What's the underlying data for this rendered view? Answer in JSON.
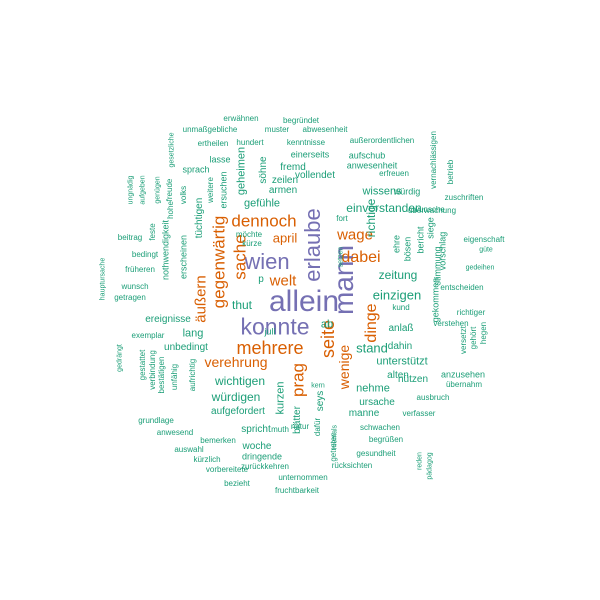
{
  "palette": {
    "purple": "#7570b3",
    "orange": "#d95f02",
    "teal": "#1b9e77"
  },
  "words": [
    {
      "text": "allein",
      "color": "purple"
    },
    {
      "text": "mann",
      "color": "purple"
    },
    {
      "text": "konnte",
      "color": "purple"
    },
    {
      "text": "erlaube",
      "color": "purple"
    },
    {
      "text": "wien",
      "color": "purple"
    },
    {
      "text": "mehrere",
      "color": "orange"
    },
    {
      "text": "seite",
      "color": "orange"
    },
    {
      "text": "sache",
      "color": "orange"
    },
    {
      "text": "dennoch",
      "color": "orange"
    },
    {
      "text": "gegenwärtig",
      "color": "orange"
    },
    {
      "text": "prag",
      "color": "orange"
    },
    {
      "text": "dabei",
      "color": "orange"
    },
    {
      "text": "dinge",
      "color": "orange"
    },
    {
      "text": "wage",
      "color": "orange"
    },
    {
      "text": "welt",
      "color": "orange"
    },
    {
      "text": "verehrung",
      "color": "orange"
    },
    {
      "text": "äußern",
      "color": "orange"
    },
    {
      "text": "april",
      "color": "orange"
    },
    {
      "text": "wenige",
      "color": "orange"
    },
    {
      "text": "stand",
      "color": "teal"
    },
    {
      "text": "einzigen",
      "color": "teal"
    },
    {
      "text": "zeitung",
      "color": "teal"
    },
    {
      "text": "einverstanden",
      "color": "teal"
    },
    {
      "text": "richtige",
      "color": "teal"
    },
    {
      "text": "wissens",
      "color": "teal"
    },
    {
      "text": "wichtigen",
      "color": "teal"
    },
    {
      "text": "würdigen",
      "color": "teal"
    },
    {
      "text": "unterstützt",
      "color": "teal"
    },
    {
      "text": "gefühle",
      "color": "teal"
    },
    {
      "text": "thut",
      "color": "teal"
    },
    {
      "text": "lang",
      "color": "teal"
    },
    {
      "text": "ereignisse",
      "color": "teal"
    },
    {
      "text": "unbedingt",
      "color": "teal"
    },
    {
      "text": "aufgefordert",
      "color": "teal"
    },
    {
      "text": "nehme",
      "color": "teal"
    },
    {
      "text": "dahin",
      "color": "teal"
    },
    {
      "text": "alten",
      "color": "teal"
    },
    {
      "text": "nützen",
      "color": "teal"
    },
    {
      "text": "ursache",
      "color": "teal"
    },
    {
      "text": "manne",
      "color": "teal"
    },
    {
      "text": "ab",
      "color": "teal"
    },
    {
      "text": "kurzen",
      "color": "teal"
    },
    {
      "text": "seys",
      "color": "teal"
    },
    {
      "text": "blätter",
      "color": "teal"
    },
    {
      "text": "spricht",
      "color": "teal"
    },
    {
      "text": "woche",
      "color": "teal"
    },
    {
      "text": "dringende",
      "color": "teal"
    },
    {
      "text": "geheimen",
      "color": "teal"
    },
    {
      "text": "tüchtigen",
      "color": "teal"
    },
    {
      "text": "söhne",
      "color": "teal"
    },
    {
      "text": "armen",
      "color": "teal"
    },
    {
      "text": "zeilen",
      "color": "teal"
    },
    {
      "text": "fremd",
      "color": "teal"
    },
    {
      "text": "vollendet",
      "color": "teal"
    },
    {
      "text": "einerseits",
      "color": "teal"
    },
    {
      "text": "aufschub",
      "color": "teal"
    },
    {
      "text": "anwesenheit",
      "color": "teal"
    },
    {
      "text": "würdig",
      "color": "teal"
    },
    {
      "text": "erfreuen",
      "color": "teal"
    },
    {
      "text": "außerordentlichen",
      "color": "teal"
    },
    {
      "text": "kenntnisse",
      "color": "teal"
    },
    {
      "text": "hundert",
      "color": "teal"
    },
    {
      "text": "abwesenheit",
      "color": "teal"
    },
    {
      "text": "muster",
      "color": "teal"
    },
    {
      "text": "unmaßgebliche",
      "color": "teal"
    },
    {
      "text": "ertheilen",
      "color": "teal"
    },
    {
      "text": "erwähnen",
      "color": "teal"
    },
    {
      "text": "begründet",
      "color": "teal"
    },
    {
      "text": "lasse",
      "color": "teal"
    },
    {
      "text": "sprach",
      "color": "teal"
    },
    {
      "text": "ersuchen",
      "color": "teal"
    },
    {
      "text": "weitere",
      "color": "teal"
    },
    {
      "text": "volks",
      "color": "teal"
    },
    {
      "text": "hohe",
      "color": "teal"
    },
    {
      "text": "erscheinen",
      "color": "teal"
    },
    {
      "text": "nothwendigkeit",
      "color": "teal"
    },
    {
      "text": "freude",
      "color": "teal"
    },
    {
      "text": "gesetzliche",
      "color": "teal"
    },
    {
      "text": "genügen",
      "color": "teal"
    },
    {
      "text": "aufgeben",
      "color": "teal"
    },
    {
      "text": "ungnädig",
      "color": "teal"
    },
    {
      "text": "feste",
      "color": "teal"
    },
    {
      "text": "beitrag",
      "color": "teal"
    },
    {
      "text": "bedingt",
      "color": "teal"
    },
    {
      "text": "früheren",
      "color": "teal"
    },
    {
      "text": "wunsch",
      "color": "teal"
    },
    {
      "text": "getragen",
      "color": "teal"
    },
    {
      "text": "hauptursache",
      "color": "teal"
    },
    {
      "text": "exemplar",
      "color": "teal"
    },
    {
      "text": "gedrängt",
      "color": "teal"
    },
    {
      "text": "gestattet",
      "color": "teal"
    },
    {
      "text": "verbindung",
      "color": "teal"
    },
    {
      "text": "bestätigen",
      "color": "teal"
    },
    {
      "text": "unfähig",
      "color": "teal"
    },
    {
      "text": "aufrichtig",
      "color": "teal"
    },
    {
      "text": "grundlage",
      "color": "teal"
    },
    {
      "text": "anwesend",
      "color": "teal"
    },
    {
      "text": "auswahl",
      "color": "teal"
    },
    {
      "text": "bemerken",
      "color": "teal"
    },
    {
      "text": "kürzlich",
      "color": "teal"
    },
    {
      "text": "vorbereitete",
      "color": "teal"
    },
    {
      "text": "zurückkehren",
      "color": "teal"
    },
    {
      "text": "unternommen",
      "color": "teal"
    },
    {
      "text": "bezieht",
      "color": "teal"
    },
    {
      "text": "fruchtbarkeit",
      "color": "teal"
    },
    {
      "text": "rücksichten",
      "color": "teal"
    },
    {
      "text": "gesundheit",
      "color": "teal"
    },
    {
      "text": "begrüßen",
      "color": "teal"
    },
    {
      "text": "schwachen",
      "color": "teal"
    },
    {
      "text": "natur",
      "color": "teal"
    },
    {
      "text": "muth",
      "color": "teal"
    },
    {
      "text": "dafür",
      "color": "teal"
    },
    {
      "text": "niemals",
      "color": "teal"
    },
    {
      "text": "getreten",
      "color": "teal"
    },
    {
      "text": "kern",
      "color": "teal"
    },
    {
      "text": "verfasser",
      "color": "teal"
    },
    {
      "text": "ausbruch",
      "color": "teal"
    },
    {
      "text": "übernahm",
      "color": "teal"
    },
    {
      "text": "anzusehen",
      "color": "teal"
    },
    {
      "text": "hegen",
      "color": "teal"
    },
    {
      "text": "gehört",
      "color": "teal"
    },
    {
      "text": "versetzt",
      "color": "teal"
    },
    {
      "text": "richtiger",
      "color": "teal"
    },
    {
      "text": "verstehen",
      "color": "teal"
    },
    {
      "text": "entscheiden",
      "color": "teal"
    },
    {
      "text": "gedeihen",
      "color": "teal"
    },
    {
      "text": "güte",
      "color": "teal"
    },
    {
      "text": "eigenschaft",
      "color": "teal"
    },
    {
      "text": "zuschriften",
      "color": "teal"
    },
    {
      "text": "betrieb",
      "color": "teal"
    },
    {
      "text": "vernachlässigen",
      "color": "teal"
    },
    {
      "text": "überwachung",
      "color": "teal"
    },
    {
      "text": "wunsche",
      "color": "teal"
    },
    {
      "text": "siege",
      "color": "teal"
    },
    {
      "text": "vorschlag",
      "color": "teal"
    },
    {
      "text": "stimmung",
      "color": "teal"
    },
    {
      "text": "gekommen",
      "color": "teal"
    },
    {
      "text": "bericht",
      "color": "teal"
    },
    {
      "text": "bösen",
      "color": "teal"
    },
    {
      "text": "ehre",
      "color": "teal"
    },
    {
      "text": "fort",
      "color": "teal"
    },
    {
      "text": "setzen",
      "color": "teal"
    },
    {
      "text": "kund",
      "color": "teal"
    },
    {
      "text": "anlaß",
      "color": "teal"
    },
    {
      "text": "möchte",
      "color": "teal"
    },
    {
      "text": "kürze",
      "color": "teal"
    },
    {
      "text": "juli",
      "color": "teal"
    },
    {
      "text": "p",
      "color": "teal"
    },
    {
      "text": "reden",
      "color": "teal"
    },
    {
      "text": "pädagog",
      "color": "teal"
    }
  ]
}
